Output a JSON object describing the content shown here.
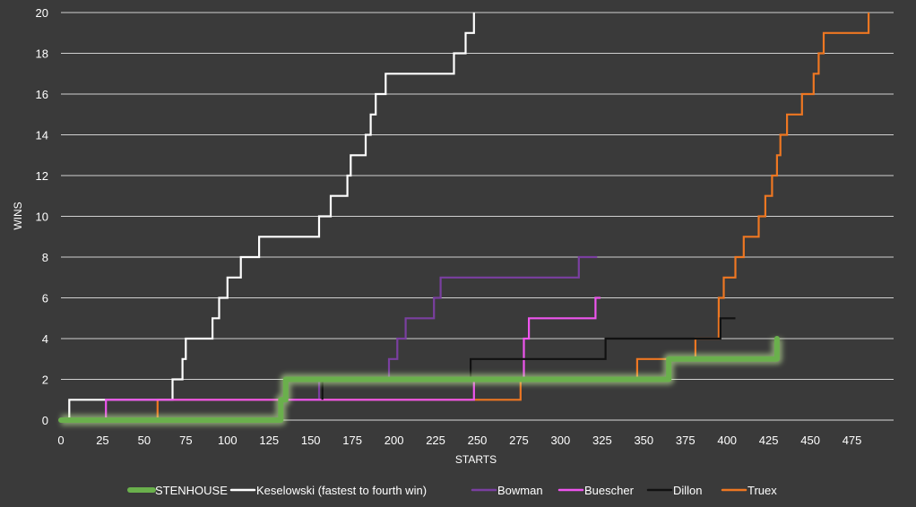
{
  "chart_data": {
    "type": "line",
    "step": true,
    "xlabel": "STARTS",
    "ylabel": "WINS",
    "xlim": [
      0,
      500
    ],
    "ylim": [
      0,
      20
    ],
    "xticks": [
      0,
      25,
      50,
      75,
      100,
      125,
      150,
      175,
      200,
      225,
      250,
      275,
      300,
      325,
      350,
      375,
      400,
      425,
      450,
      475
    ],
    "yticks": [
      0,
      2,
      4,
      6,
      8,
      10,
      12,
      14,
      16,
      18,
      20
    ],
    "grid": "horizontal",
    "legend": "bottom",
    "background": "#3a3a3a",
    "series": [
      {
        "name": "STENHOUSE",
        "color": "#6ab04c",
        "glow": true,
        "points": [
          [
            0,
            0
          ],
          [
            132,
            0
          ],
          [
            132,
            1
          ],
          [
            135,
            1
          ],
          [
            135,
            2
          ],
          [
            365,
            2
          ],
          [
            365,
            3
          ],
          [
            430,
            3
          ],
          [
            430,
            4
          ]
        ]
      },
      {
        "name": "Keselowski (fastest to fourth win)",
        "color": "#ffffff",
        "points": [
          [
            5,
            0
          ],
          [
            5,
            1
          ],
          [
            67,
            1
          ],
          [
            67,
            2
          ],
          [
            73,
            2
          ],
          [
            73,
            3
          ],
          [
            75,
            3
          ],
          [
            75,
            4
          ],
          [
            91,
            4
          ],
          [
            91,
            5
          ],
          [
            95,
            5
          ],
          [
            95,
            6
          ],
          [
            100,
            6
          ],
          [
            100,
            7
          ],
          [
            108,
            7
          ],
          [
            108,
            8
          ],
          [
            119,
            8
          ],
          [
            119,
            9
          ],
          [
            155,
            9
          ],
          [
            155,
            10
          ],
          [
            162,
            10
          ],
          [
            162,
            11
          ],
          [
            172,
            11
          ],
          [
            172,
            12
          ],
          [
            174,
            12
          ],
          [
            174,
            13
          ],
          [
            183,
            13
          ],
          [
            183,
            14
          ],
          [
            186,
            14
          ],
          [
            186,
            15
          ],
          [
            189,
            15
          ],
          [
            189,
            16
          ],
          [
            195,
            16
          ],
          [
            195,
            17
          ],
          [
            236,
            17
          ],
          [
            236,
            18
          ],
          [
            243,
            18
          ],
          [
            243,
            19
          ],
          [
            248,
            19
          ],
          [
            248,
            20
          ]
        ]
      },
      {
        "name": "Bowman",
        "color": "#7a3fa0",
        "points": [
          [
            132,
            0
          ],
          [
            132,
            1
          ],
          [
            155,
            1
          ],
          [
            155,
            2
          ],
          [
            197,
            2
          ],
          [
            197,
            3
          ],
          [
            202,
            3
          ],
          [
            202,
            4
          ],
          [
            207,
            4
          ],
          [
            207,
            5
          ],
          [
            224,
            5
          ],
          [
            224,
            6
          ],
          [
            228,
            6
          ],
          [
            228,
            7
          ],
          [
            311,
            7
          ],
          [
            311,
            8
          ],
          [
            322,
            8
          ]
        ]
      },
      {
        "name": "Buescher",
        "color": "#ee55ee",
        "points": [
          [
            27,
            0
          ],
          [
            27,
            1
          ],
          [
            57,
            1
          ],
          [
            57,
            1
          ],
          [
            248,
            1
          ],
          [
            248,
            2
          ],
          [
            278,
            2
          ],
          [
            278,
            4
          ],
          [
            281,
            4
          ],
          [
            281,
            5
          ],
          [
            321,
            5
          ],
          [
            321,
            6
          ],
          [
            324,
            6
          ]
        ]
      },
      {
        "name": "Dillon",
        "color": "#111111",
        "points": [
          [
            157,
            1
          ],
          [
            157,
            2
          ],
          [
            246,
            2
          ],
          [
            246,
            3
          ],
          [
            327,
            3
          ],
          [
            327,
            4
          ],
          [
            396,
            4
          ],
          [
            396,
            5
          ],
          [
            405,
            5
          ]
        ]
      },
      {
        "name": "Truex",
        "color": "#ee7722",
        "points": [
          [
            58,
            0
          ],
          [
            58,
            1
          ],
          [
            276,
            1
          ],
          [
            276,
            2
          ],
          [
            346,
            2
          ],
          [
            346,
            3
          ],
          [
            381,
            3
          ],
          [
            381,
            4
          ],
          [
            395,
            4
          ],
          [
            395,
            6
          ],
          [
            398,
            6
          ],
          [
            398,
            7
          ],
          [
            405,
            7
          ],
          [
            405,
            8
          ],
          [
            410,
            8
          ],
          [
            410,
            9
          ],
          [
            419,
            9
          ],
          [
            419,
            10
          ],
          [
            423,
            10
          ],
          [
            423,
            11
          ],
          [
            427,
            11
          ],
          [
            427,
            12
          ],
          [
            430,
            12
          ],
          [
            430,
            13
          ],
          [
            432,
            13
          ],
          [
            432,
            14
          ],
          [
            436,
            14
          ],
          [
            436,
            15
          ],
          [
            445,
            15
          ],
          [
            445,
            16
          ],
          [
            452,
            16
          ],
          [
            452,
            17
          ],
          [
            455,
            17
          ],
          [
            455,
            18
          ],
          [
            458,
            18
          ],
          [
            458,
            19
          ],
          [
            485,
            19
          ],
          [
            485,
            20
          ]
        ]
      }
    ]
  }
}
